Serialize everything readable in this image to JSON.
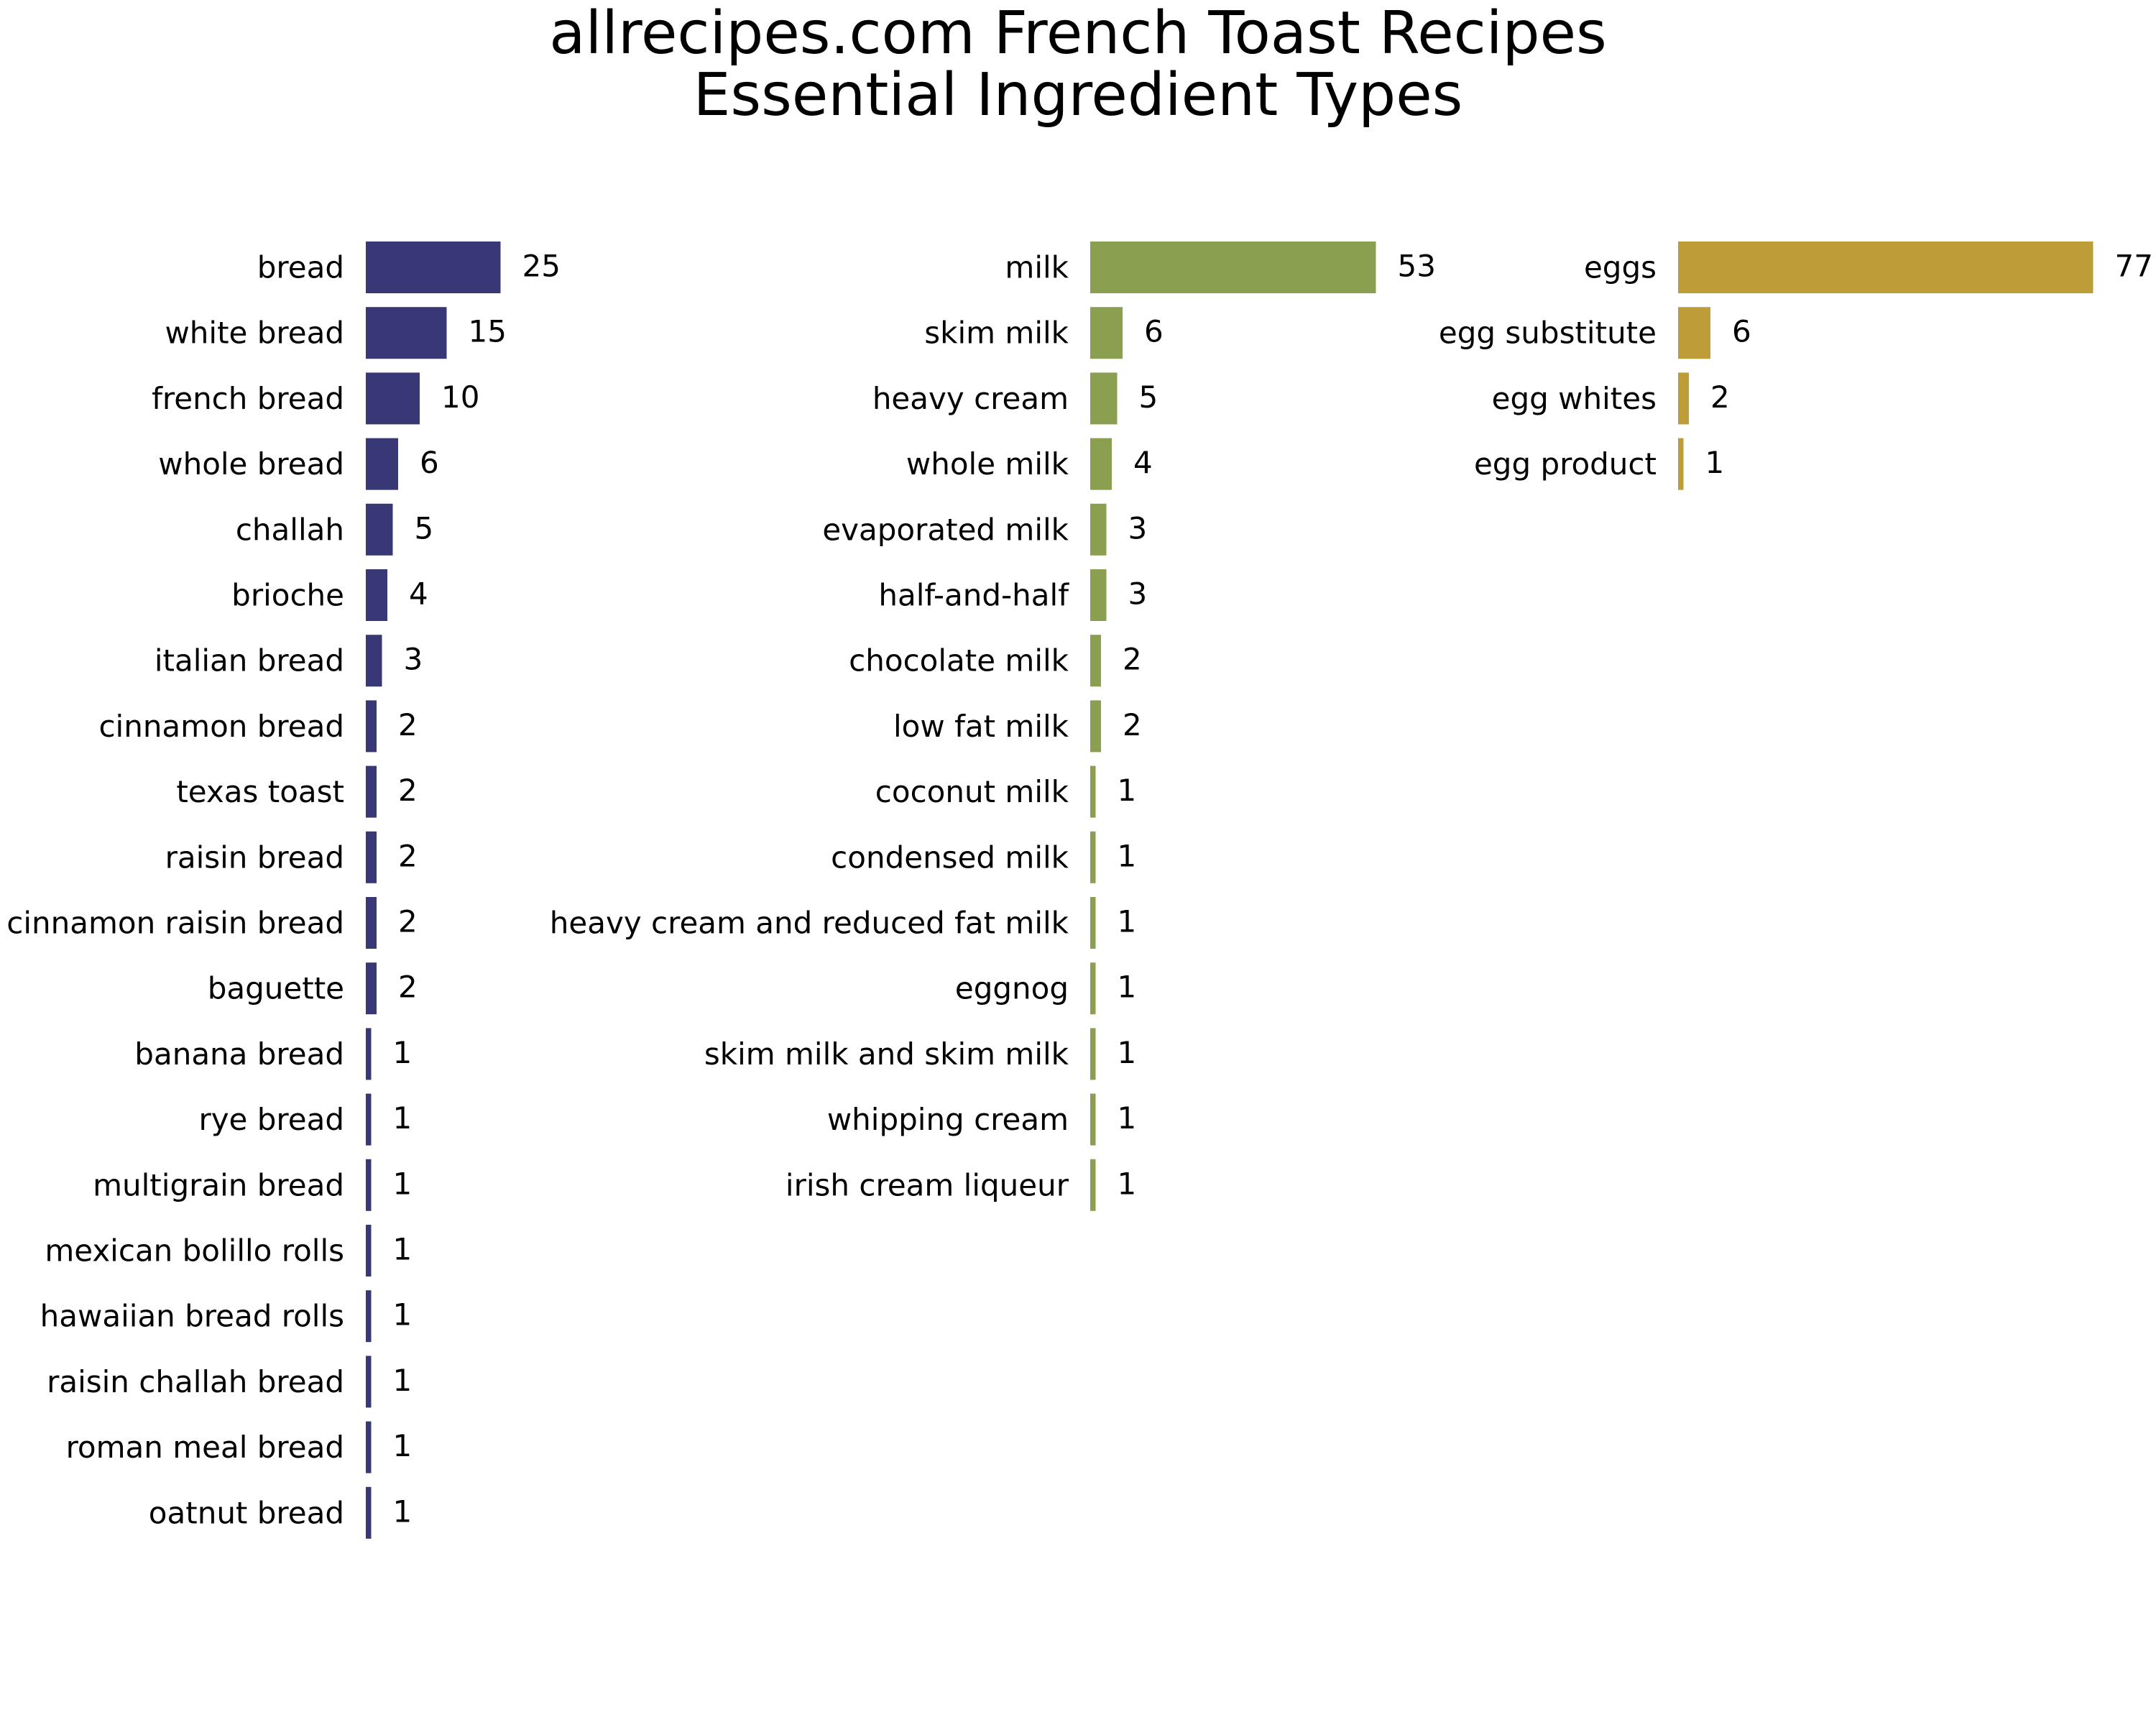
{
  "title_lines": [
    "allrecipes.com French Toast Recipes",
    "Essential Ingredient Types"
  ],
  "chart_data": [
    {
      "type": "bar",
      "orientation": "horizontal",
      "color": "#383876",
      "categories": [
        "bread",
        "white bread",
        "french bread",
        "whole bread",
        "challah",
        "brioche",
        "italian bread",
        "cinnamon bread",
        "texas toast",
        "raisin bread",
        "cinnamon raisin bread",
        "baguette",
        "banana bread",
        "rye bread",
        "multigrain bread",
        "mexican bolillo rolls",
        "hawaiian bread rolls",
        "raisin challah bread",
        "roman meal bread",
        "oatnut bread"
      ],
      "values": [
        25,
        15,
        10,
        6,
        5,
        4,
        3,
        2,
        2,
        2,
        2,
        2,
        1,
        1,
        1,
        1,
        1,
        1,
        1,
        1
      ],
      "value_labels": [
        "25",
        "15",
        "10",
        "6",
        "5",
        "4",
        "3",
        "2",
        "2",
        "2",
        "2",
        "2",
        "1",
        "1",
        "1",
        "1",
        "1",
        "1",
        "1",
        "1"
      ],
      "xlim": [
        0,
        77
      ],
      "axes_visible": false
    },
    {
      "type": "bar",
      "orientation": "horizontal",
      "color": "#8aa050",
      "categories": [
        "milk",
        "skim milk",
        "heavy cream",
        "whole milk",
        "evaporated milk",
        "half-and-half",
        "chocolate milk",
        "low fat milk",
        "coconut milk",
        "condensed milk",
        "heavy cream and reduced fat milk",
        "eggnog",
        "skim milk and skim milk",
        "whipping cream",
        "irish cream liqueur"
      ],
      "values": [
        53,
        6,
        5,
        4,
        3,
        3,
        2,
        2,
        1,
        1,
        1,
        1,
        1,
        1,
        1
      ],
      "value_labels": [
        "53",
        "6",
        "5",
        "4",
        "3",
        "3",
        "2",
        "2",
        "1",
        "1",
        "1",
        "1",
        "1",
        "1",
        "1"
      ],
      "xlim": [
        0,
        77
      ],
      "axes_visible": false
    },
    {
      "type": "bar",
      "orientation": "horizontal",
      "color": "#be9c38",
      "categories": [
        "eggs",
        "egg substitute",
        "egg whites",
        "egg product"
      ],
      "values": [
        77,
        6,
        2,
        1
      ],
      "value_labels": [
        "77",
        "6",
        "2",
        "1"
      ],
      "xlim": [
        0,
        77
      ],
      "axes_visible": false
    }
  ]
}
